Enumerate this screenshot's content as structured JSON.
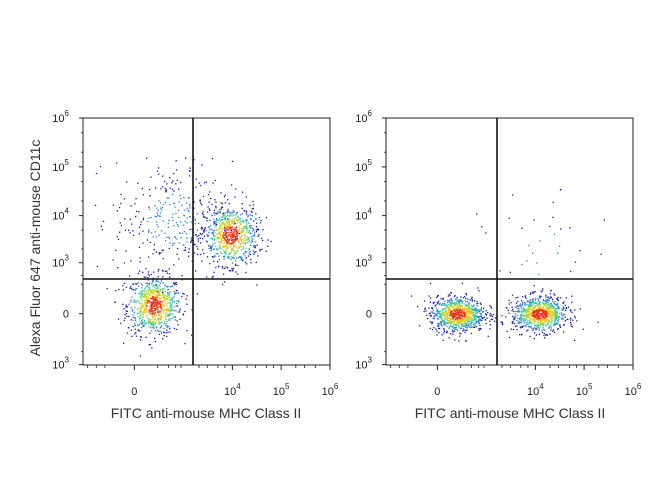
{
  "figure": {
    "ylabel": "Alexa Fluor 647 anti-mouse CD11c",
    "xlabel": "FITC anti-mouse  MHC Class II"
  },
  "chart_data": [
    {
      "type": "scatter",
      "subtype": "flow-cytometry-density",
      "xlabel": "FITC anti-mouse  MHC Class II",
      "ylabel": "Alexa Fluor 647 anti-mouse CD11c",
      "x_scale": "biexponential",
      "y_scale": "biexponential",
      "x_ticks": [
        {
          "value": 0,
          "base": "0",
          "exp": ""
        },
        {
          "value": 10000,
          "base": "10",
          "exp": "4"
        },
        {
          "value": 100000,
          "base": "10",
          "exp": "5"
        },
        {
          "value": 1000000,
          "base": "10",
          "exp": "6"
        }
      ],
      "y_ticks": [
        {
          "value": 1000000,
          "base": "10",
          "exp": "6"
        },
        {
          "value": 100000,
          "base": "10",
          "exp": "5"
        },
        {
          "value": 10000,
          "base": "10",
          "exp": "4"
        },
        {
          "value": 1000,
          "base": "10",
          "exp": "3"
        },
        {
          "value": 0,
          "base": "0",
          "exp": ""
        },
        {
          "value": -1000,
          "base": "10",
          "exp": "3",
          "negative": true
        }
      ],
      "quadrant_gate": {
        "x": 1500,
        "y": 1100
      },
      "populations": [
        {
          "center_x": 150,
          "center_y": 50,
          "spread": "dense",
          "share": 0.42
        },
        {
          "center_x": 9000,
          "center_y": 4000,
          "spread": "dense",
          "share": 0.4
        },
        {
          "center_x": 500,
          "center_y": 8000,
          "spread": "sparse",
          "share": 0.18
        }
      ],
      "colormap": [
        "#1a1aa0",
        "#2e7fd6",
        "#34c6a0",
        "#b8d430",
        "#f2c21a",
        "#e8301a"
      ]
    },
    {
      "type": "scatter",
      "subtype": "flow-cytometry-density",
      "xlabel": "FITC anti-mouse  MHC Class II",
      "ylabel": "",
      "x_scale": "biexponential",
      "y_scale": "biexponential",
      "x_ticks": [
        {
          "value": 0,
          "base": "0",
          "exp": ""
        },
        {
          "value": 10000,
          "base": "10",
          "exp": "4"
        },
        {
          "value": 100000,
          "base": "10",
          "exp": "5"
        },
        {
          "value": 1000000,
          "base": "10",
          "exp": "6"
        }
      ],
      "y_ticks": [
        {
          "value": 1000000,
          "base": "10",
          "exp": "6"
        },
        {
          "value": 100000,
          "base": "10",
          "exp": "5"
        },
        {
          "value": 10000,
          "base": "10",
          "exp": "4"
        },
        {
          "value": 1000,
          "base": "10",
          "exp": "3"
        },
        {
          "value": 0,
          "base": "0",
          "exp": ""
        },
        {
          "value": -1000,
          "base": "10",
          "exp": "3",
          "negative": true
        }
      ],
      "quadrant_gate": {
        "x": 1500,
        "y": 1100
      },
      "populations": [
        {
          "center_x": 150,
          "center_y": 0,
          "spread": "dense",
          "share": 0.5
        },
        {
          "center_x": 12000,
          "center_y": 0,
          "spread": "dense",
          "share": 0.48
        },
        {
          "center_x": 12000,
          "center_y": 1500,
          "spread": "sparse",
          "share": 0.02
        }
      ],
      "colormap": [
        "#1a1aa0",
        "#2e7fd6",
        "#34c6a0",
        "#b8d430",
        "#f2c21a",
        "#e8301a"
      ]
    }
  ]
}
